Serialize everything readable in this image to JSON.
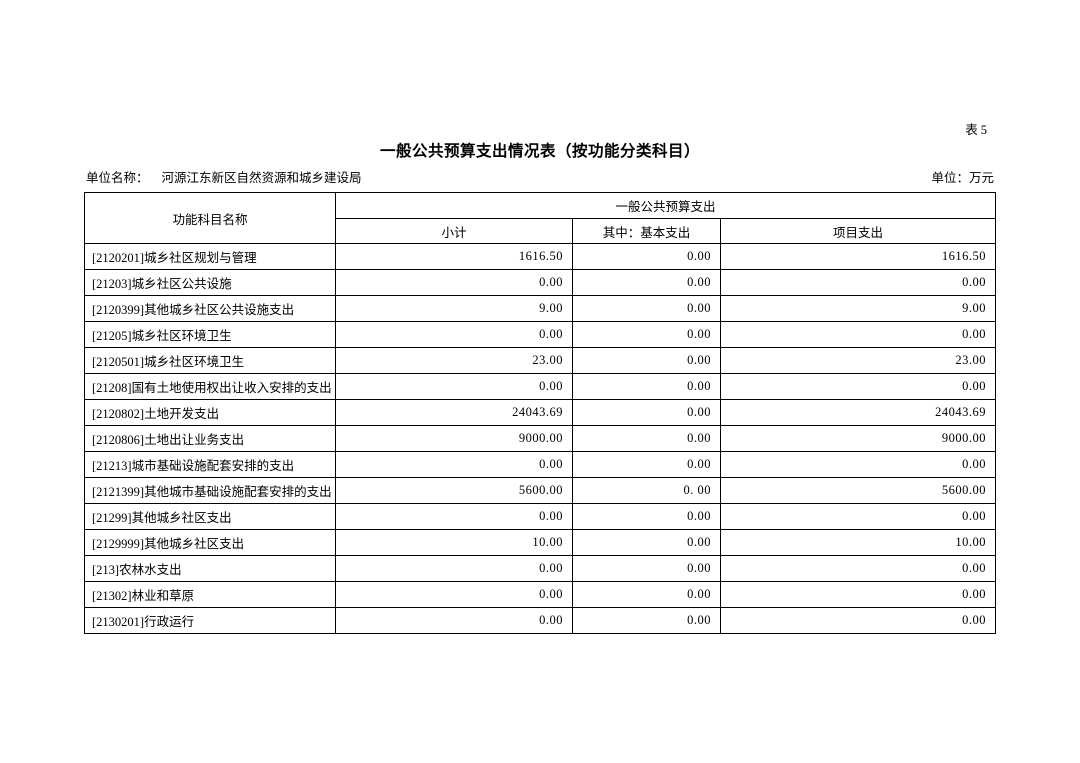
{
  "page": {
    "sheet_label": "表5",
    "title": "一般公共预算支出情况表（按功能分类科目）",
    "unit_name_label": "单位名称：",
    "unit_name": "河源江东新区自然资源和城乡建设局",
    "unit_of_measure": "单位：万元"
  },
  "table": {
    "function_column_header": "功能科目名称",
    "group_header": "一般公共预算支出",
    "sub_headers": [
      "小计",
      "其中：基本支出",
      "项目支出"
    ],
    "rows": [
      {
        "name": "[2120201]城乡社区规划与管理",
        "subtotal": "1616.50",
        "basic": "0.00",
        "project": "1616.50"
      },
      {
        "name": "[21203]城乡社区公共设施",
        "subtotal": "0.00",
        "basic": "0.00",
        "project": "0.00"
      },
      {
        "name": "[2120399]其他城乡社区公共设施支出",
        "subtotal": "9.00",
        "basic": "0.00",
        "project": "9.00"
      },
      {
        "name": "[21205]城乡社区环境卫生",
        "subtotal": "0.00",
        "basic": "0.00",
        "project": "0.00"
      },
      {
        "name": "[2120501]城乡社区环境卫生",
        "subtotal": "23.00",
        "basic": "0.00",
        "project": "23.00"
      },
      {
        "name": "[21208]国有土地使用权出让收入安排的支出",
        "subtotal": "0.00",
        "basic": "0.00",
        "project": "0.00"
      },
      {
        "name": "[2120802]土地开发支出",
        "subtotal": "24043.69",
        "basic": "0.00",
        "project": "24043.69"
      },
      {
        "name": "[2120806]土地出让业务支出",
        "subtotal": "9000.00",
        "basic": "0.00",
        "project": "9000.00"
      },
      {
        "name": "[21213]城市基础设施配套安排的支出",
        "subtotal": "0.00",
        "basic": "0.00",
        "project": "0.00"
      },
      {
        "name": "[2121399]其他城市基础设施配套安排的支出",
        "subtotal": "5600.00",
        "basic": "0. 00",
        "project": "5600.00"
      },
      {
        "name": "[21299]其他城乡社区支出",
        "subtotal": "0.00",
        "basic": "0.00",
        "project": "0.00"
      },
      {
        "name": "[2129999]其他城乡社区支出",
        "subtotal": "10.00",
        "basic": "0.00",
        "project": "10.00"
      },
      {
        "name": "[213]农林水支出",
        "subtotal": "0.00",
        "basic": "0.00",
        "project": "0.00"
      },
      {
        "name": "[21302]林业和草原",
        "subtotal": "0.00",
        "basic": "0.00",
        "project": "0.00"
      },
      {
        "name": "[2130201]行政运行",
        "subtotal": "0.00",
        "basic": "0.00",
        "project": "0.00"
      }
    ]
  },
  "colors": {
    "background": "#ffffff",
    "text": "#000000",
    "border": "#000000"
  }
}
